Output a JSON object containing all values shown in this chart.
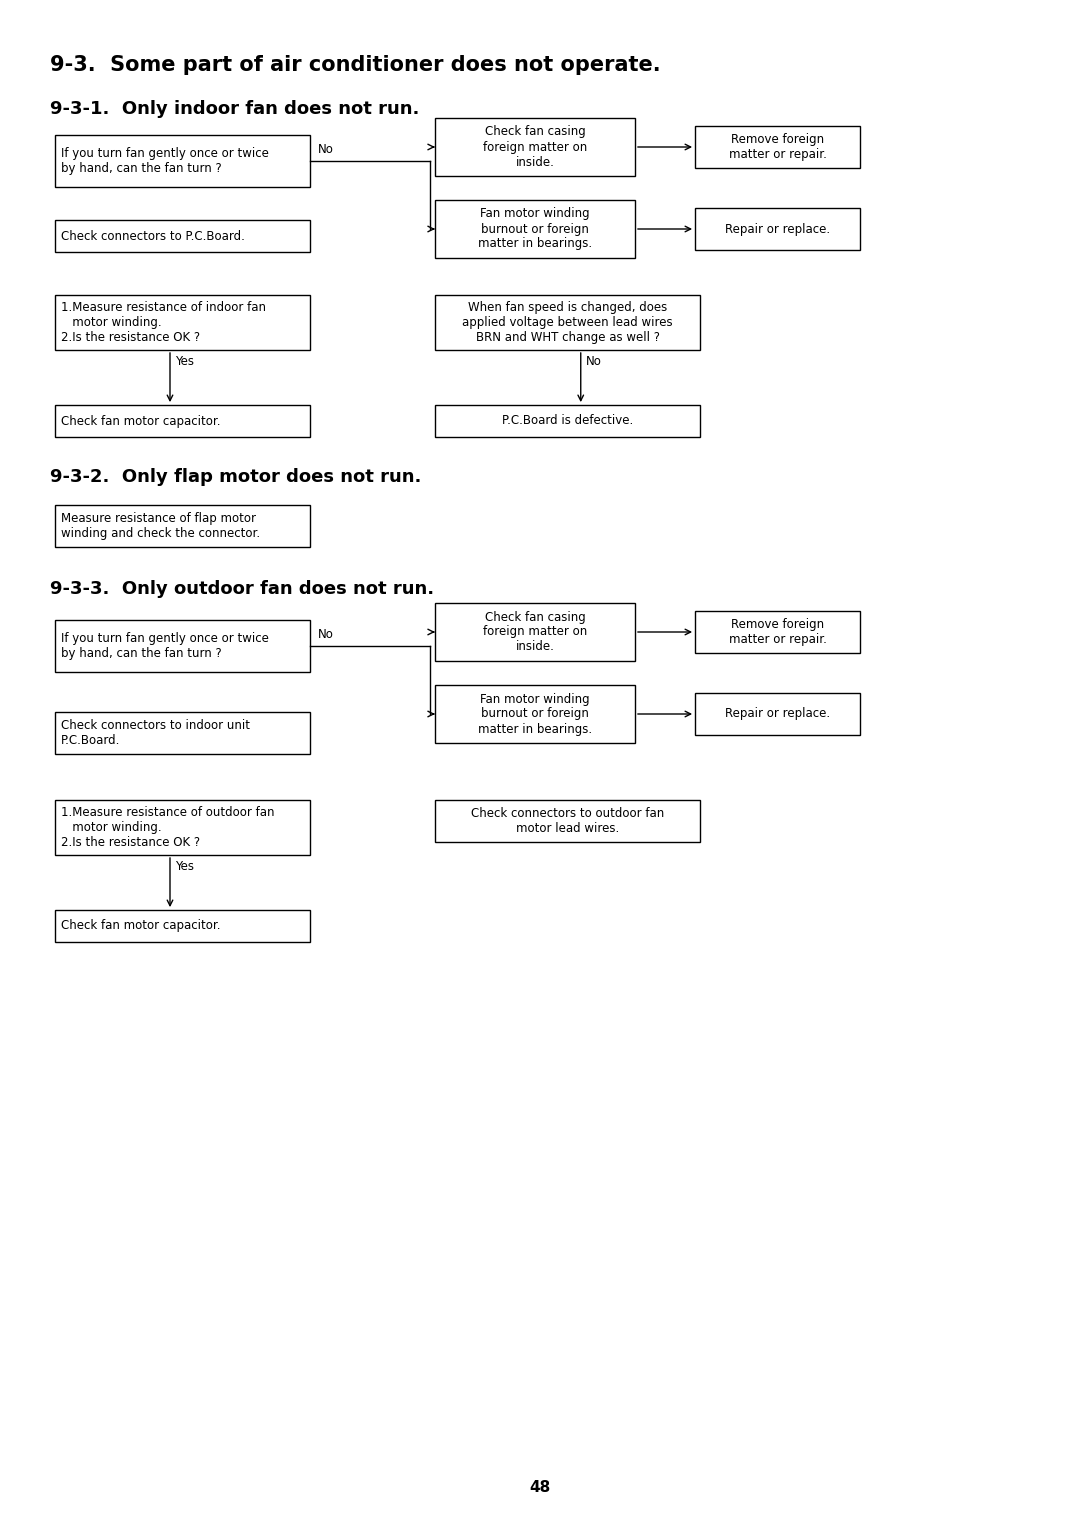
{
  "title": "9-3.  Some part of air conditioner does not operate.",
  "title_fontsize": 15,
  "subtitle1": "9-3-1.  Only indoor fan does not run.",
  "subtitle2": "9-3-2.  Only flap motor does not run.",
  "subtitle3": "9-3-3.  Only outdoor fan does not run.",
  "subtitle_fontsize": 13,
  "page_number": "48",
  "bg_color": "#ffffff",
  "box_color": "#000000",
  "text_color": "#000000",
  "font_size": 8.5
}
